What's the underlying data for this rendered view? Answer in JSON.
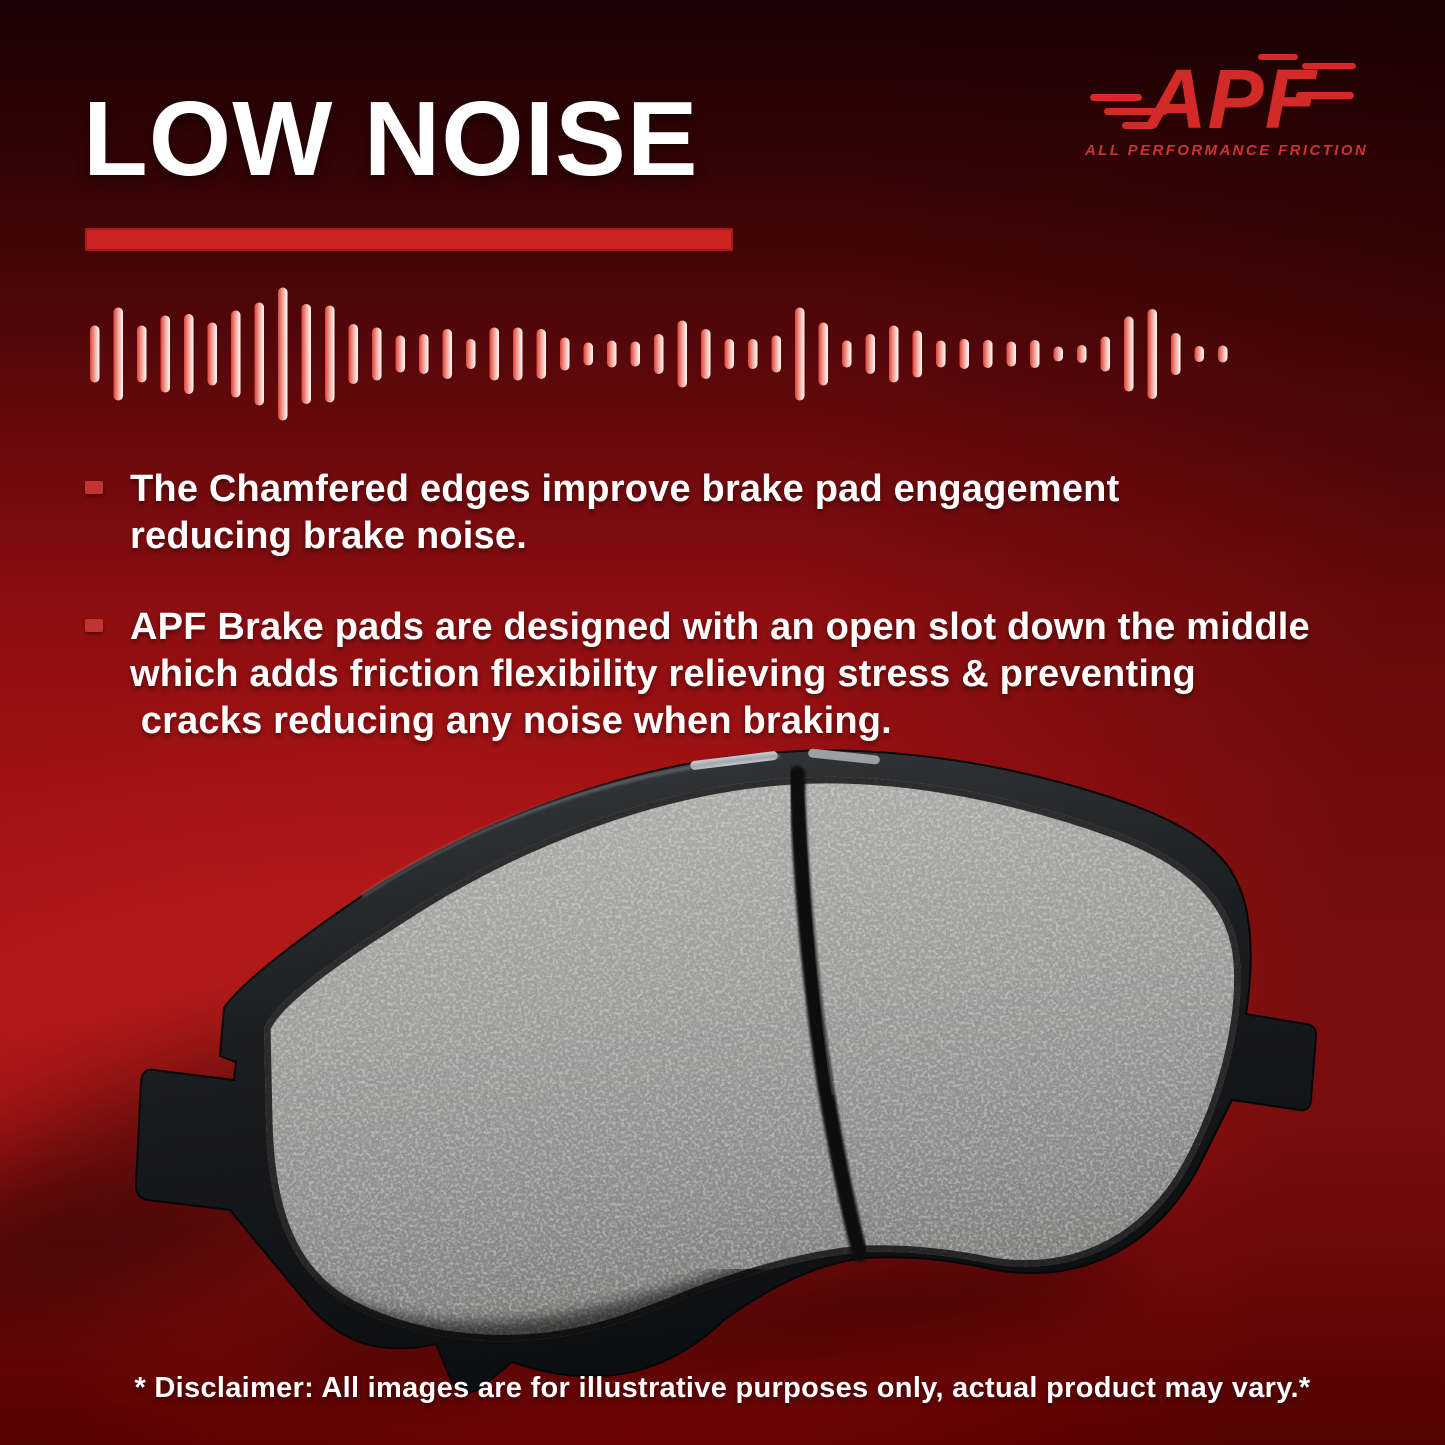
{
  "header": {
    "title": "LOW NOISE",
    "underline_color": "#cb2422"
  },
  "logo": {
    "brand": "APF",
    "tagline": "ALL PERFORMANCE FRICTION",
    "color": "#d22a26"
  },
  "waveform": {
    "type": "audio-level-bars",
    "bar_color_start": "#e14237",
    "bar_color_mid": "#f2b0a5",
    "bar_color_end": "#fffcfb",
    "heights": [
      57,
      93,
      57,
      77,
      80,
      63,
      87,
      103,
      133,
      100,
      97,
      60,
      53,
      37,
      40,
      50,
      30,
      53,
      53,
      50,
      33,
      23,
      27,
      25,
      40,
      67,
      50,
      30,
      30,
      37,
      93,
      63,
      27,
      40,
      57,
      47,
      27,
      30,
      28,
      25,
      28,
      15,
      18,
      35,
      75,
      90,
      42,
      16,
      17
    ]
  },
  "bullets": [
    {
      "lines": [
        "The Chamfered edges improve brake pad engagement",
        "reducing brake noise."
      ]
    },
    {
      "lines": [
        "APF Brake pads are designed with an open slot down the middle",
        "which adds friction flexibility relieving stress & preventing",
        " cracks reducing any noise when braking."
      ]
    }
  ],
  "disclaimer": "* Disclaimer: All images are for illustrative purposes only, actual product may vary.*",
  "icons": {
    "bullet_marker": "red-dash-square",
    "waveform": "sound-level-bars",
    "logo_streaks": "speed-lines"
  },
  "colors": {
    "background_top": "#1b0102",
    "background_bright": "#ab1515",
    "background_bottom": "#700303",
    "text": "#ffffff",
    "bullet_marker": "#c23430"
  }
}
